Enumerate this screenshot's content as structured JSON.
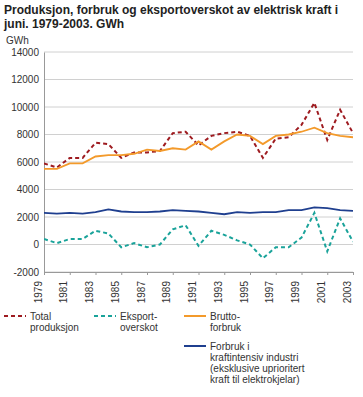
{
  "chart_data": {
    "type": "line",
    "title": "Produksjon, forbruk og eksportoverskot av elektrisk kraft i juni. 1979-2003. GWh",
    "y_label": "GWh",
    "x": [
      1979,
      1980,
      1981,
      1982,
      1983,
      1984,
      1985,
      1986,
      1987,
      1988,
      1989,
      1990,
      1991,
      1992,
      1993,
      1994,
      1995,
      1996,
      1997,
      1998,
      1999,
      2000,
      2001,
      2002,
      2003
    ],
    "xlim": [
      1979,
      2003
    ],
    "xticks": [
      1979,
      1981,
      1983,
      1985,
      1987,
      1989,
      1991,
      1993,
      1995,
      1997,
      1999,
      2001,
      2003
    ],
    "ylim": [
      -2000,
      14000
    ],
    "yticks": [
      -2000,
      0,
      2000,
      4000,
      6000,
      8000,
      10000,
      12000,
      14000
    ],
    "grid": true,
    "legend": "bottom",
    "series": [
      {
        "name": "Total\nproduksjon",
        "color": "#9e1b20",
        "line_style": "dashed",
        "values": [
          5900,
          5600,
          6300,
          6300,
          7400,
          7300,
          6300,
          6700,
          6700,
          6800,
          8100,
          8200,
          7200,
          7900,
          8100,
          8200,
          7900,
          6300,
          7700,
          7800,
          8700,
          10300,
          7600,
          9800,
          8100
        ]
      },
      {
        "name": "Eksport-\noverskot",
        "color": "#1aa39a",
        "line_style": "dashed",
        "values": [
          400,
          100,
          400,
          400,
          1000,
          800,
          -200,
          100,
          -200,
          0,
          1100,
          1400,
          -100,
          1000,
          700,
          300,
          0,
          -1000,
          -200,
          -200,
          500,
          2300,
          -500,
          1900,
          200
        ]
      },
      {
        "name": "Brutto-\nforbruk",
        "color": "#f39a2b",
        "line_style": "solid",
        "values": [
          5500,
          5500,
          5900,
          5900,
          6400,
          6500,
          6500,
          6600,
          6900,
          6800,
          7000,
          6900,
          7500,
          6900,
          7500,
          8000,
          7900,
          7300,
          7900,
          8000,
          8200,
          8500,
          8100,
          7900,
          7800
        ]
      },
      {
        "name": "Forbruk i\nkraftintensiv industri\n(eksklusive uprioritert\nkraft til elektrokjelar)",
        "color": "#1f3f8f",
        "line_style": "solid",
        "values": [
          2300,
          2250,
          2300,
          2250,
          2350,
          2550,
          2400,
          2350,
          2350,
          2400,
          2500,
          2450,
          2400,
          2300,
          2200,
          2350,
          2300,
          2350,
          2350,
          2500,
          2500,
          2700,
          2650,
          2500,
          2450
        ]
      }
    ]
  }
}
